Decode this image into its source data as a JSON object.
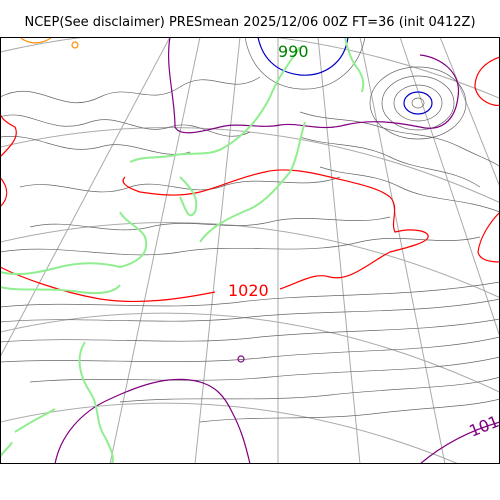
{
  "title": "NCEP(See disclaimer) PRESmean 2025/12/06 00Z FT=36 (init 0412Z)",
  "labels": {
    "low_center": "990",
    "ridge": "1020",
    "edge": "101"
  },
  "colors": {
    "background": "#ffffff",
    "frame": "#000000",
    "graticule": "#aaaaaa",
    "coastline": "#90ee90",
    "isobar_thin": "#666666",
    "isobar_990": "#0000cc",
    "isobar_1010": "#800080",
    "isobar_1020": "#ff0000",
    "isobar_1030": "#ff8c00",
    "label_990": "#008000",
    "label_1020": "#ff0000",
    "label_101": "#800080"
  }
}
